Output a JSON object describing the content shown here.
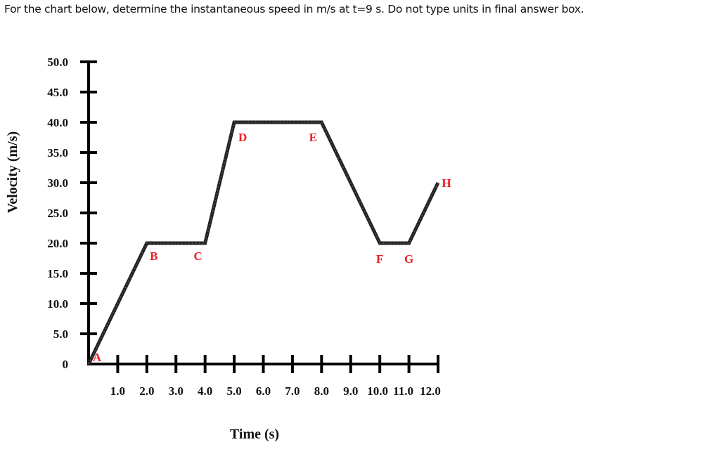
{
  "question": {
    "text": "For the chart below, determine the instantaneous speed in m/s at t=9 s. Do not type units in final answer box."
  },
  "chart_data": {
    "type": "line",
    "title": "",
    "xlabel": "Time (s)",
    "ylabel": "Velocity (m/s)",
    "xlim": [
      0,
      12
    ],
    "ylim": [
      0,
      50
    ],
    "grid": false,
    "legend": null,
    "x_tick_labels": [
      "1.0",
      "2.0",
      "3.0",
      "4.0",
      "5.0",
      "6.0",
      "7.0",
      "8.0",
      "9.0",
      "10.0",
      "11.0",
      "12.0"
    ],
    "y_tick_labels": [
      "0",
      "5.0",
      "10.0",
      "15.0",
      "20.0",
      "25.0",
      "30.0",
      "35.0",
      "40.0",
      "45.0",
      "50.0"
    ],
    "series": [
      {
        "name": "velocity",
        "x": [
          0,
          2,
          4,
          5,
          8,
          10,
          11,
          12
        ],
        "y": [
          0,
          20,
          20,
          40,
          40,
          20,
          20,
          30
        ],
        "point_labels": [
          "A",
          "B",
          "C",
          "D",
          "E",
          "F",
          "G",
          "H"
        ],
        "color": "#222222"
      }
    ],
    "annotation_color": "#ee1c25"
  }
}
